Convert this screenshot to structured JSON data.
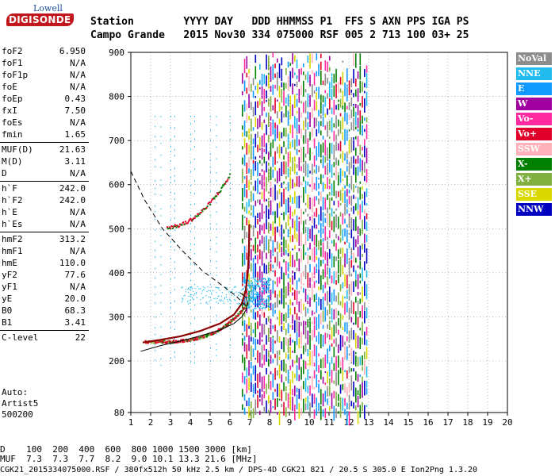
{
  "logo": {
    "top": "Lowell",
    "main": "DIGISONDE"
  },
  "header": {
    "row1": "Station        YYYY DAY   DDD HHMMSS P1  FFS S AXN PPS IGA PS",
    "row2": "Campo Grande   2015 Nov30 334 075000 RSF 005 2 713 100 03+ 25"
  },
  "params": {
    "group1": [
      {
        "label": "foF2",
        "value": "6.950"
      },
      {
        "label": "foF1",
        "value": "N/A"
      },
      {
        "label": "foF1p",
        "value": "N/A"
      },
      {
        "label": "foE",
        "value": "N/A"
      },
      {
        "label": "foEp",
        "value": "0.43"
      },
      {
        "label": "fxI",
        "value": "7.50"
      },
      {
        "label": "foEs",
        "value": "N/A"
      },
      {
        "label": "fmin",
        "value": "1.65"
      }
    ],
    "group2": [
      {
        "label": "MUF(D)",
        "value": "21.63"
      },
      {
        "label": "M(D)",
        "value": "3.11"
      },
      {
        "label": "D",
        "value": "N/A"
      }
    ],
    "group3": [
      {
        "label": "h`F",
        "value": "242.0"
      },
      {
        "label": "h`F2",
        "value": "242.0"
      },
      {
        "label": "h`E",
        "value": "N/A"
      },
      {
        "label": "h`Es",
        "value": "N/A"
      }
    ],
    "group4": [
      {
        "label": "hmF2",
        "value": "313.2"
      },
      {
        "label": "hmF1",
        "value": "N/A"
      },
      {
        "label": "hmE",
        "value": "110.0"
      },
      {
        "label": "yF2",
        "value": "77.6"
      },
      {
        "label": "yF1",
        "value": "N/A"
      },
      {
        "label": "yE",
        "value": "20.0"
      },
      {
        "label": "B0",
        "value": "68.3"
      },
      {
        "label": "B1",
        "value": "3.41"
      }
    ],
    "group5": [
      {
        "label": "C-level",
        "value": "22"
      }
    ]
  },
  "auto": {
    "line1": "Auto:",
    "line2": "Artist5",
    "line3": "500200"
  },
  "legend": [
    {
      "label": "NoVal",
      "color": "#8c8c8c"
    },
    {
      "label": "NNE",
      "color": "#22bbee"
    },
    {
      "label": "E",
      "color": "#1199ff"
    },
    {
      "label": "W",
      "color": "#a000a0"
    },
    {
      "label": "Vo-",
      "color": "#ff2aa0"
    },
    {
      "label": "Vo+",
      "color": "#e0002a"
    },
    {
      "label": "SSW",
      "color": "#ffb0b8"
    },
    {
      "label": "X-",
      "color": "#008000"
    },
    {
      "label": "X+",
      "color": "#80b040"
    },
    {
      "label": "SSE",
      "color": "#d8d800"
    },
    {
      "label": "NNW",
      "color": "#0000c0"
    }
  ],
  "bottom": {
    "d_row": "D    100  200  400  600  800 1000 1500 3000 [km]",
    "muf_row": "MUF  7.3  7.3  7.7  8.2  9.0 10.1 13.3 21.6 [MHz]",
    "footer": "CGK21_2015334075000.RSF / 380fx512h 50 kHz 2.5 km / DPS-4D CGK21 821 / 20.5 S 305.0 E Ion2Png 1.3.20"
  },
  "chart_data": {
    "type": "scatter",
    "x_ticks": [
      "1",
      "2",
      "3",
      "4",
      "5",
      "6",
      "7",
      "8",
      "9",
      "10",
      "11",
      "12",
      "13",
      "14",
      "15",
      "16",
      "17",
      "18",
      "19",
      "20"
    ],
    "y_ticks": [
      "80",
      "200",
      "300",
      "400",
      "500",
      "600",
      "700",
      "800",
      "900"
    ],
    "xlim": [
      1,
      20
    ],
    "ylim": [
      80,
      900
    ],
    "series": [
      {
        "name": "",
        "points": [
          [
            1.6,
            242
          ],
          [
            2.5,
            248
          ],
          [
            3.5,
            256
          ],
          [
            4.5,
            268
          ],
          [
            5.5,
            285
          ],
          [
            6.2,
            305
          ],
          [
            6.6,
            330
          ],
          [
            6.8,
            360
          ],
          [
            6.9,
            400
          ],
          [
            6.95,
            440
          ],
          [
            6.97,
            480
          ],
          [
            6.98,
            510
          ]
        ]
      },
      {
        "name": "",
        "points": [
          [
            1.5,
            222
          ],
          [
            2.5,
            235
          ],
          [
            3.5,
            245
          ],
          [
            4.5,
            257
          ],
          [
            5.5,
            270
          ],
          [
            6.2,
            285
          ],
          [
            6.6,
            300
          ],
          [
            6.8,
            315
          ],
          [
            6.9,
            330
          ],
          [
            6.8,
            345
          ],
          [
            6.5,
            355
          ]
        ]
      },
      {
        "name": "",
        "points": [
          [
            1.0,
            630
          ],
          [
            1.7,
            565
          ],
          [
            2.6,
            500
          ],
          [
            3.6,
            450
          ],
          [
            4.6,
            405
          ],
          [
            5.5,
            375
          ],
          [
            6.3,
            348
          ],
          [
            6.8,
            325
          ]
        ]
      }
    ]
  }
}
